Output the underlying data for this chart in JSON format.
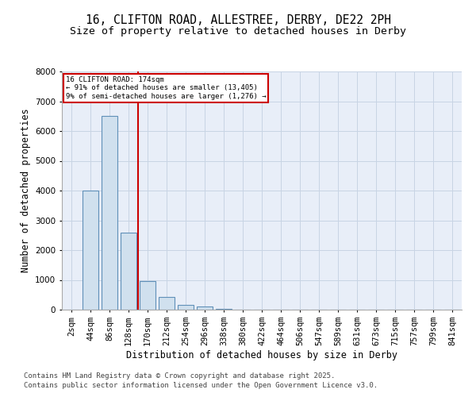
{
  "title1": "16, CLIFTON ROAD, ALLESTREE, DERBY, DE22 2PH",
  "title2": "Size of property relative to detached houses in Derby",
  "xlabel": "Distribution of detached houses by size in Derby",
  "ylabel": "Number of detached properties",
  "categories": [
    "2sqm",
    "44sqm",
    "86sqm",
    "128sqm",
    "170sqm",
    "212sqm",
    "254sqm",
    "296sqm",
    "338sqm",
    "380sqm",
    "422sqm",
    "464sqm",
    "506sqm",
    "547sqm",
    "589sqm",
    "631sqm",
    "673sqm",
    "715sqm",
    "757sqm",
    "799sqm",
    "841sqm"
  ],
  "values": [
    5,
    4000,
    6500,
    2600,
    950,
    430,
    150,
    100,
    40,
    0,
    0,
    0,
    0,
    0,
    0,
    0,
    0,
    0,
    0,
    0,
    0
  ],
  "bar_color": "#d0e0ee",
  "bar_edge_color": "#6090b8",
  "vline_color": "#cc0000",
  "annotation_text": "16 CLIFTON ROAD: 174sqm\n← 91% of detached houses are smaller (13,405)\n9% of semi-detached houses are larger (1,276) →",
  "annotation_box_color": "#cc0000",
  "ylim": [
    0,
    8000
  ],
  "yticks": [
    0,
    1000,
    2000,
    3000,
    4000,
    5000,
    6000,
    7000,
    8000
  ],
  "grid_color": "#c8d4e4",
  "bg_color": "#e8eef8",
  "footer1": "Contains HM Land Registry data © Crown copyright and database right 2025.",
  "footer2": "Contains public sector information licensed under the Open Government Licence v3.0.",
  "title1_fontsize": 10.5,
  "title2_fontsize": 9.5,
  "axis_fontsize": 8.5,
  "tick_fontsize": 7.5,
  "footer_fontsize": 6.5
}
